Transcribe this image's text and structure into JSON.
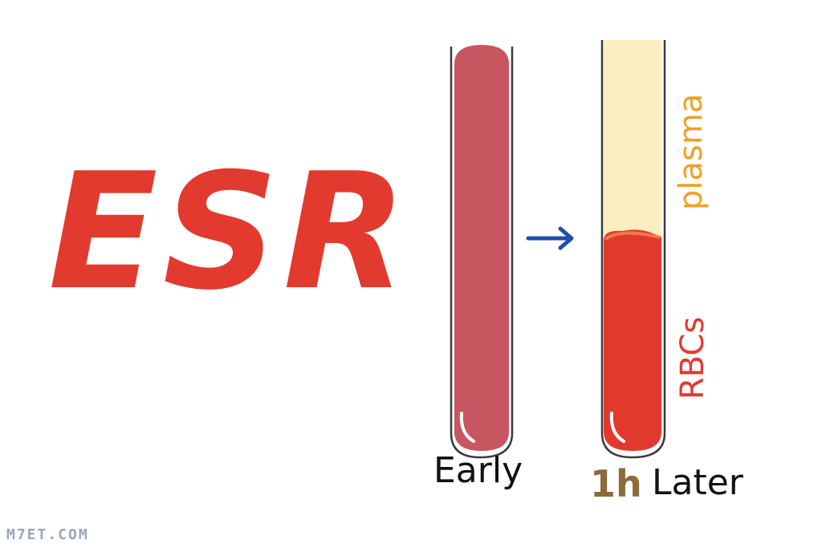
{
  "title": "ESR",
  "labels": {
    "early": "Early",
    "time": "1h",
    "later": "Later",
    "plasma": "plasma",
    "rbcs": "RBCs"
  },
  "arrow_icon": "arrow-right-icon",
  "colors": {
    "title": "#e23a2e",
    "whole_blood": "#c85660",
    "rbc": "#e2392f",
    "plasma": "#fbeec1",
    "plasma_label": "#f0a028",
    "arrow": "#1f4fa8",
    "time_label": "#8b6a3c"
  },
  "watermark": "M7ET.COM"
}
